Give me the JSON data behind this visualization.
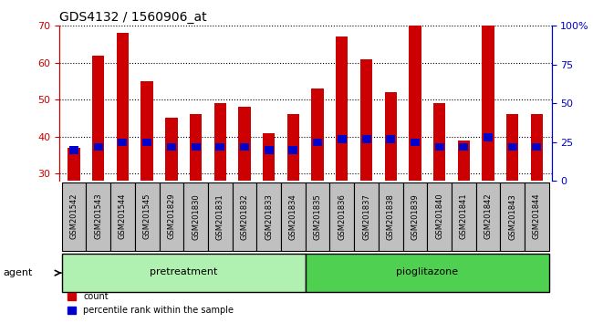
{
  "title": "GDS4132 / 1560906_at",
  "categories": [
    "GSM201542",
    "GSM201543",
    "GSM201544",
    "GSM201545",
    "GSM201829",
    "GSM201830",
    "GSM201831",
    "GSM201832",
    "GSM201833",
    "GSM201834",
    "GSM201835",
    "GSM201836",
    "GSM201837",
    "GSM201838",
    "GSM201839",
    "GSM201840",
    "GSM201841",
    "GSM201842",
    "GSM201843",
    "GSM201844"
  ],
  "count_values": [
    37,
    62,
    68,
    55,
    45,
    46,
    49,
    48,
    41,
    46,
    53,
    67,
    61,
    52,
    70,
    49,
    39,
    70,
    46,
    46
  ],
  "percentile_values": [
    20,
    22,
    25,
    25,
    22,
    22,
    22,
    22,
    20,
    20,
    25,
    27,
    27,
    27,
    25,
    22,
    22,
    28,
    22,
    22
  ],
  "count_color": "#cc0000",
  "percentile_color": "#0000cc",
  "ylim_left": [
    28,
    70
  ],
  "ylim_right": [
    0,
    100
  ],
  "yticks_left": [
    30,
    40,
    50,
    60,
    70
  ],
  "yticks_right": [
    0,
    25,
    50,
    75,
    100
  ],
  "ytick_labels_right": [
    "0",
    "25",
    "50",
    "75",
    "100%"
  ],
  "bar_width": 0.5,
  "pretreatment_range": [
    0,
    9
  ],
  "pioglitazone_range": [
    10,
    19
  ],
  "pretreatment_label": "pretreatment",
  "pioglitazone_label": "pioglitazone",
  "agent_label": "agent",
  "group_color_pre": "#b0f0b0",
  "group_color_pio": "#50d050",
  "tick_area_color": "#c0c0c0",
  "legend_count": "count",
  "legend_percentile": "percentile rank within the sample",
  "background_color": "#ffffff"
}
